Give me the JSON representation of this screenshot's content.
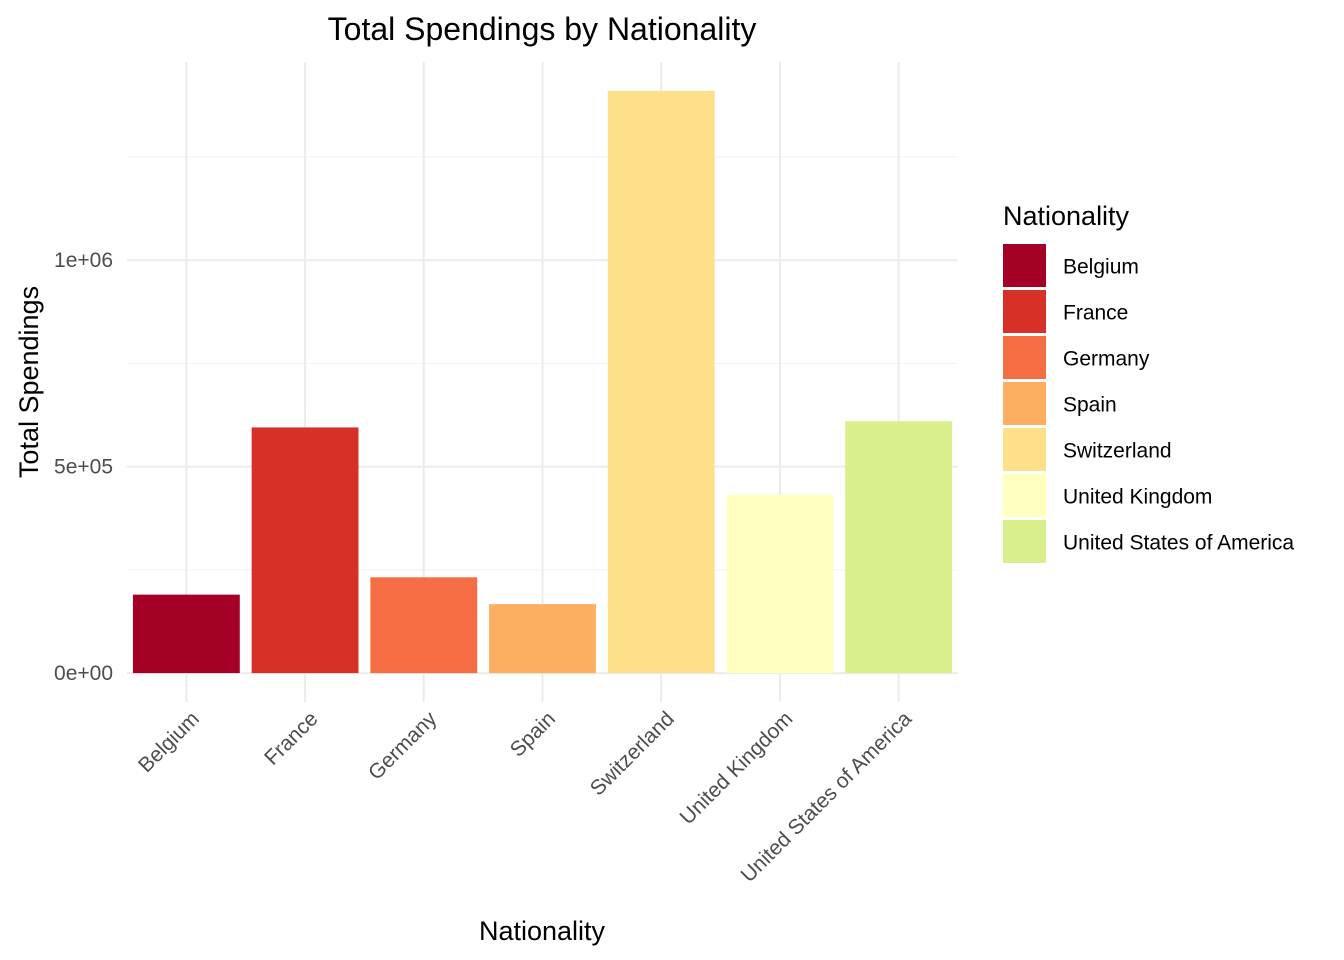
{
  "chart_data": {
    "type": "bar",
    "title": "Total Spendings by Nationality",
    "xlabel": "Nationality",
    "ylabel": "Total Spendings",
    "categories": [
      "Belgium",
      "France",
      "Germany",
      "Spain",
      "Switzerland",
      "United Kingdom",
      "United States of America"
    ],
    "values": [
      190000,
      595000,
      232000,
      167000,
      1410000,
      432000,
      610000
    ],
    "colors": [
      "#A50026",
      "#D73027",
      "#F46D43",
      "#FDAE61",
      "#FEE08B",
      "#FFFFBF",
      "#D9EF8B"
    ],
    "ylim": [
      -70000,
      1480000
    ],
    "yticks": [
      0,
      500000,
      1000000
    ],
    "ytick_labels": [
      "0e+00",
      "5e+05",
      "1e+06"
    ],
    "grid": true,
    "legend": {
      "title": "Nationality",
      "position": "right",
      "entries": [
        "Belgium",
        "France",
        "Germany",
        "Spain",
        "Switzerland",
        "United Kingdom",
        "United States of America"
      ]
    }
  }
}
